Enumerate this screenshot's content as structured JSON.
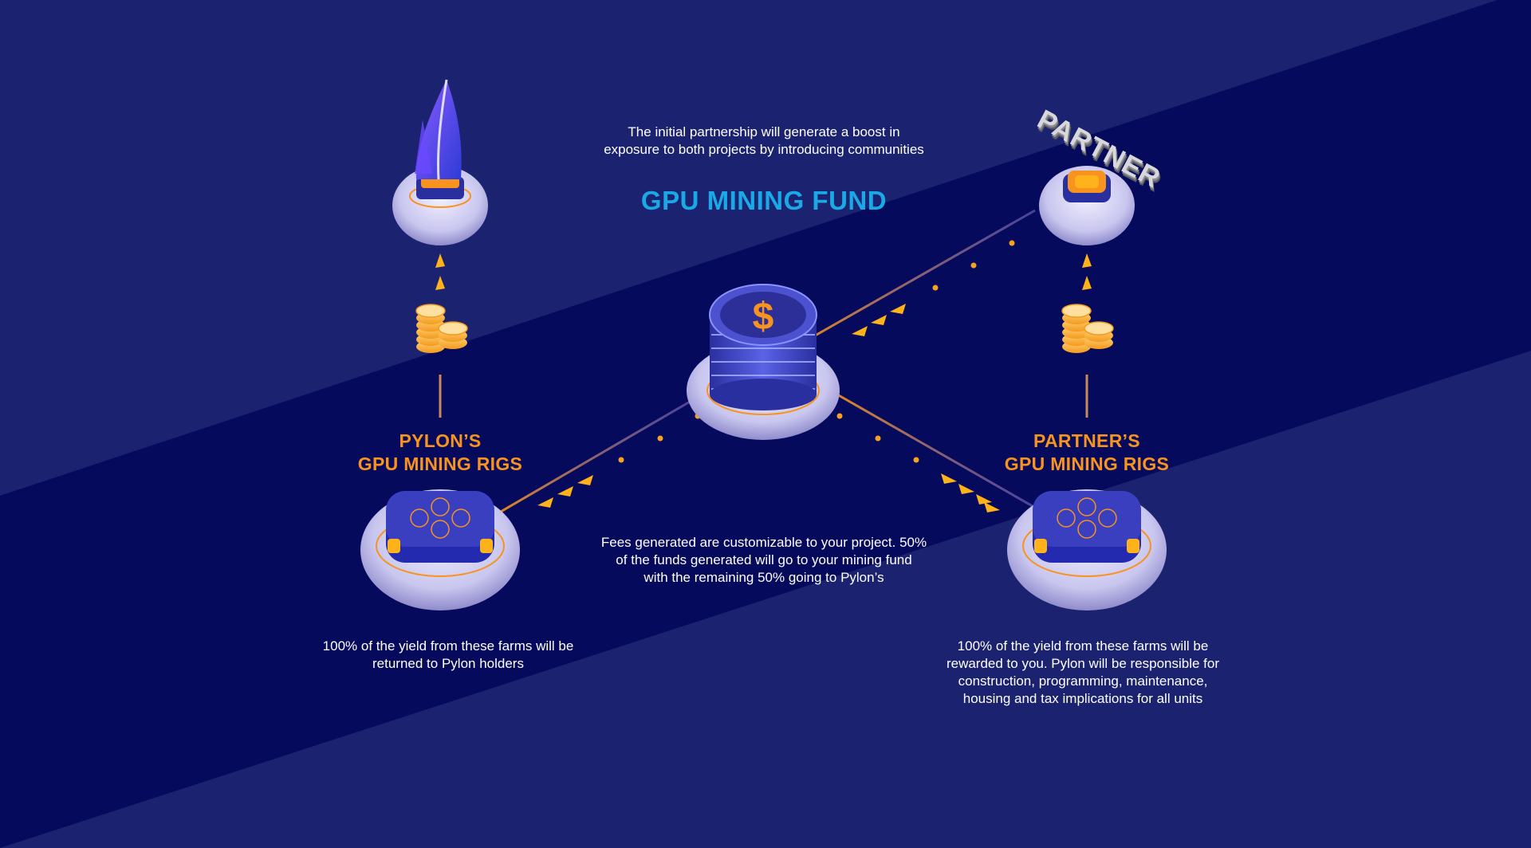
{
  "colors": {
    "background_light": "#1b2270",
    "background_band": "#060a5c",
    "title": "#19a9e6",
    "rig_label": "#f7931e",
    "arrow": "#ffb21a",
    "body_text": "#ffffff"
  },
  "intro": {
    "line1": "The initial partnership will generate a boost in",
    "line2": "exposure to both projects by introducing communities"
  },
  "fund": {
    "title": "GPU MINING FUND",
    "icon": "dollar-coin-stack-icon"
  },
  "partner_logo": {
    "text": "PARTNER"
  },
  "pylon_logo": {
    "icon": "pylon-sail-logo-icon"
  },
  "left_rigs": {
    "label_line1": "PYLON’S",
    "label_line2": "GPU MINING RIGS",
    "desc_line1": "100% of the yield from these farms will be",
    "desc_line2": "returned to Pylon holders",
    "icon": "gpu-mining-rig-icon"
  },
  "right_rigs": {
    "label_line1": "PARTNER’S",
    "label_line2": "GPU MINING RIGS",
    "desc_line1": "100% of the yield from these farms will be",
    "desc_line2": "rewarded to you. Pylon will be responsible for",
    "desc_line3": "construction, programming, maintenance,",
    "desc_line4": "housing and tax implications for all units",
    "icon": "gpu-mining-rig-icon"
  },
  "fees": {
    "line1": "Fees generated are customizable to your project. 50%",
    "line2": "of the funds generated will go to your mining fund",
    "line3": "with the remaining 50% going to Pylon’s"
  },
  "coins": {
    "icon": "gold-coin-stack-icon"
  }
}
